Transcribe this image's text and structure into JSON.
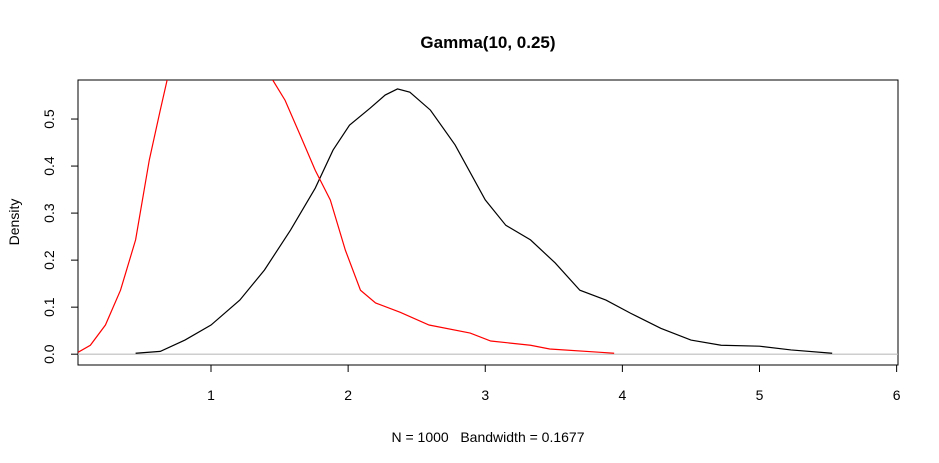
{
  "chart_data": {
    "type": "line",
    "title": "Gamma(10, 0.25)",
    "x_label": "N = 1000   Bandwidth = 0.1677",
    "y_label": "Density",
    "xlim": [
      0.03,
      6.01
    ],
    "ylim": [
      -0.023,
      0.583
    ],
    "xticks": [
      1,
      2,
      3,
      4,
      5,
      6
    ],
    "yticks": [
      {
        "value": 0,
        "label": "0.0"
      },
      0.1,
      0.2,
      0.3,
      0.4,
      0.5
    ],
    "reference_line": {
      "value": 0,
      "color": "#bebebe"
    },
    "series": [
      {
        "color": "#000000",
        "x": [
          0.45,
          0.63,
          0.81,
          1.0,
          1.21,
          1.39,
          1.58,
          1.76,
          1.89,
          2.01,
          2.16,
          2.27,
          2.36,
          2.45,
          2.6,
          2.78,
          3.0,
          3.15,
          3.33,
          3.51,
          3.69,
          3.88,
          4.06,
          4.28,
          4.5,
          4.72,
          5.0,
          5.23,
          5.53
        ],
        "values": [
          0.002,
          0.006,
          0.03,
          0.062,
          0.115,
          0.179,
          0.264,
          0.353,
          0.434,
          0.487,
          0.523,
          0.551,
          0.564,
          0.557,
          0.519,
          0.445,
          0.328,
          0.274,
          0.243,
          0.194,
          0.136,
          0.115,
          0.087,
          0.055,
          0.03,
          0.019,
          0.017,
          0.009,
          0.002
        ]
      },
      {
        "color": "#ff0000",
        "x": [
          0.03,
          0.12,
          0.23,
          0.34,
          0.45,
          0.55,
          0.63,
          0.68,
          null,
          1.45,
          1.54,
          1.65,
          1.76,
          1.87,
          1.98,
          2.09,
          2.2,
          2.38,
          2.59,
          2.89,
          3.04,
          3.33,
          3.47,
          3.84,
          3.94
        ],
        "values": [
          0.004,
          0.019,
          0.062,
          0.136,
          0.243,
          0.413,
          0.519,
          0.583,
          null,
          0.583,
          0.54,
          0.466,
          0.391,
          0.328,
          0.221,
          0.136,
          0.109,
          0.089,
          0.062,
          0.045,
          0.028,
          0.019,
          0.011,
          0.004,
          0.002
        ]
      }
    ]
  }
}
